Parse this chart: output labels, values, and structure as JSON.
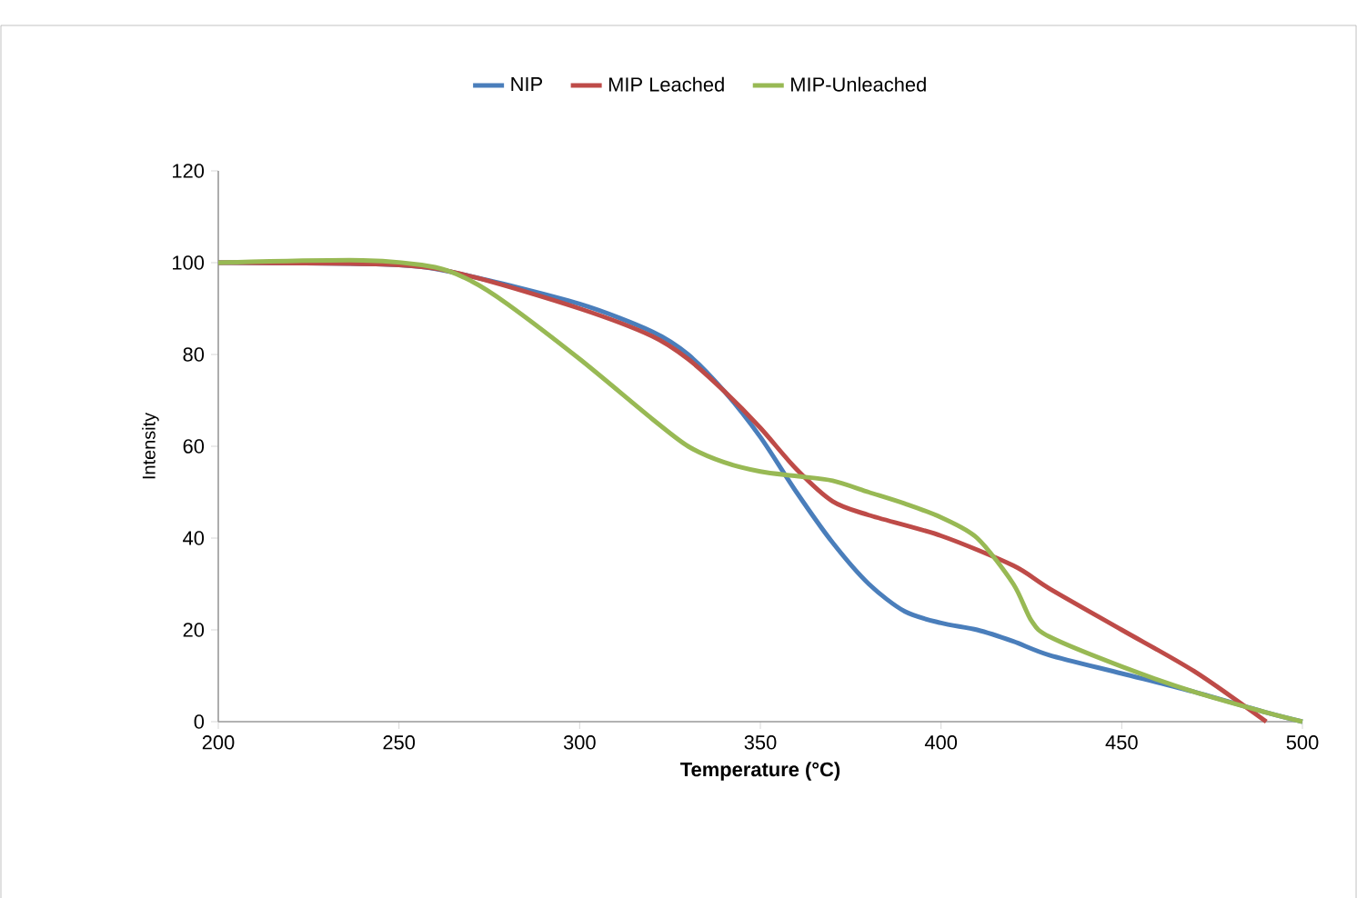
{
  "chart_data": {
    "type": "line",
    "xlabel": "Temperature (°C)",
    "ylabel": "Intensity",
    "xlim": [
      200,
      500
    ],
    "ylim": [
      0,
      120
    ],
    "xticks": [
      200,
      250,
      300,
      350,
      400,
      450,
      500
    ],
    "yticks": [
      0,
      20,
      40,
      60,
      80,
      100,
      120
    ],
    "legend": "top",
    "grid": false,
    "marker": "none",
    "line_style": "solid",
    "series": [
      {
        "name": "NIP",
        "color": "#4a7ebb",
        "x": [
          200,
          250,
          270,
          300,
          320,
          330,
          340,
          350,
          360,
          370,
          380,
          390,
          400,
          410,
          420,
          430,
          450,
          470,
          490,
          500
        ],
        "values": [
          100,
          99.5,
          97,
          91,
          85,
          80,
          72,
          62,
          50,
          39,
          30,
          24,
          21.5,
          20,
          17.5,
          14.5,
          10.5,
          6.5,
          2,
          0
        ]
      },
      {
        "name": "MIP Leached",
        "color": "#be4b48",
        "x": [
          200,
          250,
          270,
          300,
          320,
          330,
          340,
          350,
          360,
          370,
          380,
          400,
          420,
          430,
          450,
          470,
          490
        ],
        "values": [
          100,
          99.5,
          97,
          90,
          84,
          79,
          72,
          64,
          55,
          48,
          45,
          40.5,
          34,
          29,
          20,
          11,
          0
        ]
      },
      {
        "name": "MIP-Unleached",
        "color": "#98b954",
        "x": [
          200,
          240,
          260,
          270,
          280,
          300,
          320,
          330,
          340,
          350,
          360,
          370,
          380,
          390,
          400,
          410,
          420,
          425,
          430,
          450,
          470,
          490,
          500
        ],
        "values": [
          100,
          100.5,
          99,
          96,
          91,
          79,
          66,
          60,
          56.5,
          54.5,
          53.5,
          52.5,
          50,
          47.5,
          44.5,
          40,
          30,
          22,
          18.5,
          12,
          6.5,
          2,
          0
        ]
      }
    ]
  }
}
